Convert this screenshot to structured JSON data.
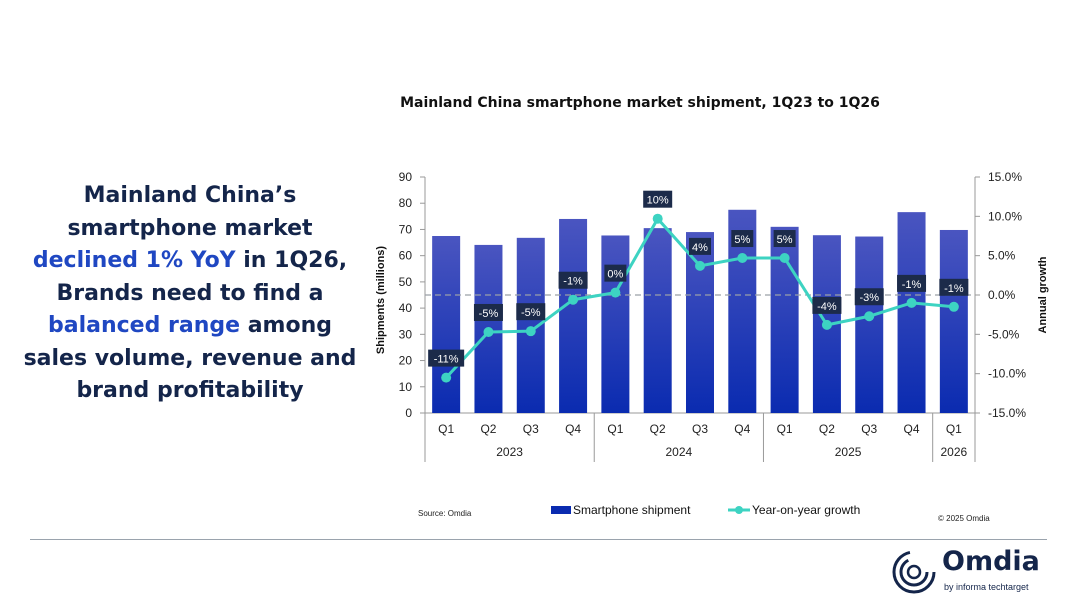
{
  "headline": {
    "parts": [
      {
        "text": "Mainland China’s smartphone market ",
        "highlight": false
      },
      {
        "text": "declined 1% YoY",
        "highlight": true
      },
      {
        "text": " in 1Q26, Brands need to find a ",
        "highlight": false
      },
      {
        "text": "balanced range",
        "highlight": true
      },
      {
        "text": " among sales volume, revenue and brand profitability",
        "highlight": false
      }
    ]
  },
  "colors": {
    "bar_top": "#4a55c0",
    "bar_bottom": "#0a2bb0",
    "line": "#3dd3c2",
    "label_bg": "#1c2b4a",
    "text_dark": "#14254a",
    "highlight": "#1f47c2"
  },
  "chart_data": {
    "type": "bar+line",
    "title": "Mainland China smartphone market shipment, 1Q23 to 1Q26",
    "ylabel": "Shipments (millions)",
    "y2label": "Annual growth",
    "ylim": [
      0,
      90
    ],
    "yticks": [
      0,
      10,
      20,
      30,
      40,
      50,
      60,
      70,
      80,
      90
    ],
    "y2lim": [
      -15,
      15
    ],
    "y2ticks": [
      "-15.0%",
      "-10.0%",
      "-5.0%",
      "0.0%",
      "5.0%",
      "10.0%",
      "15.0%"
    ],
    "categories": [
      "Q1",
      "Q2",
      "Q3",
      "Q4",
      "Q1",
      "Q2",
      "Q3",
      "Q4",
      "Q1",
      "Q2",
      "Q3",
      "Q4",
      "Q1"
    ],
    "years": [
      {
        "label": "2023",
        "count": 4
      },
      {
        "label": "2024",
        "count": 4
      },
      {
        "label": "2025",
        "count": 4
      },
      {
        "label": "2026",
        "count": 1
      }
    ],
    "series": [
      {
        "name": "Smartphone shipment",
        "type": "bar",
        "axis": "left",
        "values": [
          67.5,
          64.1,
          66.8,
          74.0,
          67.7,
          70.5,
          69.0,
          77.5,
          71.0,
          67.8,
          67.3,
          76.6,
          69.8
        ]
      },
      {
        "name": "Year-on-year growth",
        "type": "line",
        "axis": "right",
        "values": [
          -10.5,
          -4.7,
          -4.6,
          -0.6,
          0.3,
          9.7,
          3.7,
          4.7,
          4.7,
          -3.8,
          -2.7,
          -1.0,
          -1.5
        ],
        "data_labels": [
          "-11%",
          "-5%",
          "-5%",
          "-1%",
          "0%",
          "10%",
          "4%",
          "5%",
          "5%",
          "-4%",
          "-3%",
          "-1%",
          "-1%"
        ]
      }
    ],
    "reference_line": 0,
    "legend": "bottom",
    "grid": false,
    "source": "Source: Omdia",
    "copyright": "© 2025 Omdia"
  },
  "logo": {
    "name": "Omdia",
    "tagline": "by informa techtarget"
  }
}
